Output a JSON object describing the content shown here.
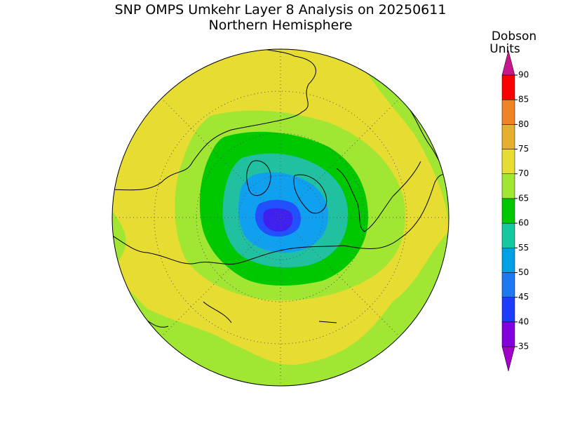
{
  "title": "SNP OMPS Umkehr Layer 8 Analysis on 20250611",
  "subtitle": "Northern Hemisphere",
  "colorbar": {
    "label_lines": [
      "Dobson",
      "Units"
    ],
    "ticks": [
      35,
      40,
      45,
      50,
      55,
      60,
      65,
      70,
      75,
      80,
      85,
      90
    ],
    "colors": [
      "#a000c8",
      "#8200dc",
      "#1e3cff",
      "#1e78f0",
      "#00a0e6",
      "#14c8a0",
      "#00c800",
      "#a0e632",
      "#e6dc32",
      "#e6af2d",
      "#f08228",
      "#fa0000",
      "#c8168c"
    ]
  }
}
